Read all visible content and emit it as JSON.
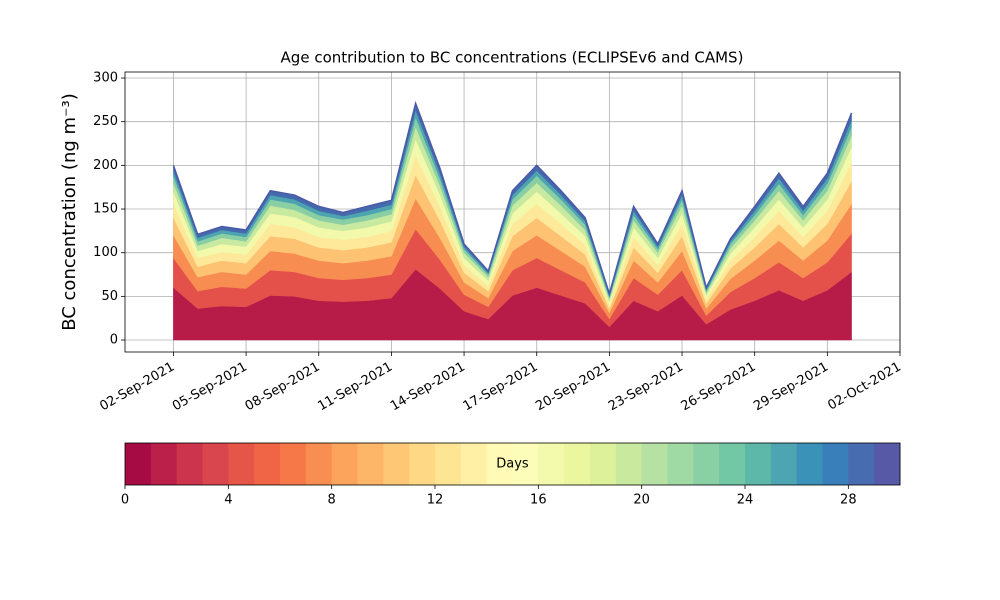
{
  "chart_data": {
    "type": "stacked_area",
    "title": "Age contribution to BC concentrations (ECLIPSEv6 and CAMS)",
    "y_label": "BC concentration (ng m⁻³)",
    "x": [
      "2021-09-02",
      "2021-09-03",
      "2021-09-04",
      "2021-09-05",
      "2021-09-06",
      "2021-09-07",
      "2021-09-08",
      "2021-09-09",
      "2021-09-10",
      "2021-09-11",
      "2021-09-12",
      "2021-09-13",
      "2021-09-14",
      "2021-09-15",
      "2021-09-16",
      "2021-09-17",
      "2021-09-18",
      "2021-09-19",
      "2021-09-20",
      "2021-09-21",
      "2021-09-22",
      "2021-09-23",
      "2021-09-24",
      "2021-09-25",
      "2021-09-26",
      "2021-09-27",
      "2021-09-28",
      "2021-09-29",
      "2021-09-30"
    ],
    "series": [
      {
        "color": "#b71c48",
        "values": [
          60,
          36,
          39,
          38,
          51,
          50,
          45,
          44,
          45,
          48,
          81,
          59,
          33,
          24,
          51,
          60,
          51,
          42,
          15,
          45,
          33,
          51,
          18,
          35,
          45,
          57,
          45,
          57,
          78
        ]
      },
      {
        "color": "#e4514a",
        "values": [
          34,
          20,
          22,
          21,
          29,
          28,
          26,
          25,
          26,
          27,
          46,
          33,
          19,
          14,
          29,
          34,
          29,
          24,
          9,
          26,
          19,
          29,
          10,
          20,
          26,
          32,
          26,
          32,
          44
        ]
      },
      {
        "color": "#f88d52",
        "values": [
          26,
          16,
          17,
          16,
          22,
          21,
          20,
          19,
          20,
          21,
          35,
          25,
          14,
          10,
          22,
          26,
          22,
          18,
          7,
          20,
          14,
          22,
          8,
          15,
          20,
          25,
          20,
          25,
          34
        ]
      },
      {
        "color": "#fdc372",
        "values": [
          20,
          12,
          13,
          13,
          17,
          17,
          15,
          15,
          15,
          16,
          27,
          20,
          11,
          8,
          17,
          20,
          17,
          14,
          5,
          15,
          11,
          17,
          6,
          12,
          15,
          19,
          15,
          19,
          26
        ]
      },
      {
        "color": "#fee99a",
        "values": [
          16,
          10,
          10,
          10,
          14,
          13,
          12,
          12,
          12,
          13,
          22,
          16,
          9,
          6,
          14,
          16,
          14,
          11,
          4,
          12,
          9,
          14,
          5,
          9,
          12,
          15,
          12,
          15,
          21
        ]
      },
      {
        "color": "#f2f9ab",
        "values": [
          14,
          8,
          9,
          9,
          12,
          12,
          11,
          10,
          11,
          11,
          19,
          14,
          8,
          6,
          12,
          14,
          12,
          10,
          4,
          11,
          8,
          12,
          4,
          8,
          11,
          13,
          11,
          13,
          18
        ]
      },
      {
        "color": "#c7e9a0",
        "values": [
          10,
          6,
          7,
          6,
          9,
          8,
          8,
          7,
          8,
          8,
          14,
          10,
          6,
          4,
          9,
          10,
          9,
          7,
          3,
          8,
          6,
          9,
          3,
          6,
          8,
          10,
          8,
          10,
          13
        ]
      },
      {
        "color": "#8acfa4",
        "values": [
          8,
          5,
          5,
          5,
          7,
          7,
          6,
          6,
          6,
          6,
          11,
          8,
          4,
          3,
          7,
          8,
          7,
          6,
          2,
          6,
          4,
          7,
          2,
          5,
          6,
          8,
          6,
          8,
          10
        ]
      },
      {
        "color": "#4ca4b1",
        "values": [
          6,
          4,
          4,
          4,
          5,
          5,
          5,
          4,
          5,
          5,
          8,
          6,
          3,
          2,
          5,
          6,
          5,
          4,
          2,
          5,
          3,
          5,
          2,
          3,
          5,
          6,
          5,
          6,
          8
        ]
      },
      {
        "color": "#4569ad",
        "values": [
          6,
          4,
          4,
          4,
          5,
          5,
          5,
          4,
          5,
          5,
          8,
          6,
          3,
          2,
          5,
          6,
          5,
          4,
          2,
          5,
          3,
          5,
          2,
          3,
          5,
          6,
          5,
          6,
          8
        ]
      }
    ],
    "edge_color": "#4a5aa8",
    "xlim": [
      "2021-08-31",
      "2021-10-02"
    ],
    "xticks": [
      {
        "value": "2021-09-02",
        "label": "02-Sep-2021"
      },
      {
        "value": "2021-09-05",
        "label": "05-Sep-2021"
      },
      {
        "value": "2021-09-08",
        "label": "08-Sep-2021"
      },
      {
        "value": "2021-09-11",
        "label": "11-Sep-2021"
      },
      {
        "value": "2021-09-14",
        "label": "14-Sep-2021"
      },
      {
        "value": "2021-09-17",
        "label": "17-Sep-2021"
      },
      {
        "value": "2021-09-20",
        "label": "20-Sep-2021"
      },
      {
        "value": "2021-09-23",
        "label": "23-Sep-2021"
      },
      {
        "value": "2021-09-26",
        "label": "26-Sep-2021"
      },
      {
        "value": "2021-09-29",
        "label": "29-Sep-2021"
      },
      {
        "value": "2021-10-02",
        "label": "02-Oct-2021"
      }
    ],
    "ylim": [
      -13.7,
      306.9
    ],
    "yticks": [
      0,
      50,
      100,
      150,
      200,
      250,
      300
    ],
    "grid": true,
    "colorbar": {
      "label": "Days",
      "lim": [
        0,
        30
      ],
      "levels": 30,
      "ticks": [
        0,
        4,
        8,
        12,
        16,
        20,
        24,
        28
      ],
      "colors": [
        "#9e0142",
        "#d53e4f",
        "#f46d43",
        "#fdae61",
        "#fee08b",
        "#ffffbf",
        "#e6f598",
        "#abdda4",
        "#66c2a5",
        "#3288bd",
        "#5e4fa2"
      ]
    }
  }
}
